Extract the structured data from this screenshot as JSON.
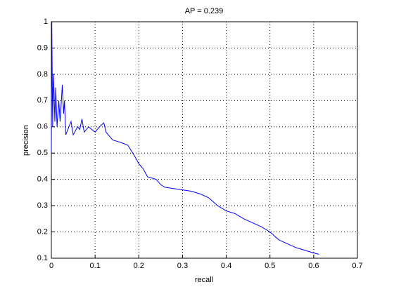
{
  "chart_data": {
    "type": "line",
    "title": "AP = 0.239",
    "x_label": "recall",
    "y_label": "precision",
    "x": [
      0,
      0.001,
      0.003,
      0.005,
      0.008,
      0.01,
      0.013,
      0.017,
      0.02,
      0.025,
      0.028,
      0.03,
      0.033,
      0.04,
      0.045,
      0.05,
      0.06,
      0.065,
      0.07,
      0.075,
      0.085,
      0.1,
      0.11,
      0.12,
      0.125,
      0.13,
      0.14,
      0.16,
      0.175,
      0.19,
      0.2,
      0.21,
      0.22,
      0.24,
      0.25,
      0.26,
      0.28,
      0.3,
      0.32,
      0.34,
      0.36,
      0.38,
      0.4,
      0.42,
      0.44,
      0.46,
      0.48,
      0.5,
      0.52,
      0.54,
      0.56,
      0.58,
      0.6,
      0.612
    ],
    "values": [
      0.5,
      1.0,
      0.6,
      0.8,
      0.62,
      0.75,
      0.6,
      0.7,
      0.62,
      0.76,
      0.65,
      0.7,
      0.57,
      0.6,
      0.62,
      0.57,
      0.6,
      0.59,
      0.63,
      0.58,
      0.6,
      0.58,
      0.6,
      0.615,
      0.58,
      0.57,
      0.55,
      0.54,
      0.53,
      0.49,
      0.46,
      0.44,
      0.41,
      0.4,
      0.38,
      0.37,
      0.365,
      0.36,
      0.355,
      0.345,
      0.33,
      0.3,
      0.28,
      0.27,
      0.25,
      0.235,
      0.22,
      0.2,
      0.17,
      0.155,
      0.14,
      0.13,
      0.12,
      0.115
    ],
    "color": "#0000ff",
    "xlim": [
      0,
      0.7
    ],
    "xticks": [
      0,
      0.1,
      0.2,
      0.3,
      0.4,
      0.5,
      0.6,
      0.7
    ],
    "ylim": [
      0.1,
      1
    ],
    "yticks": [
      0.1,
      0.2,
      0.3,
      0.4,
      0.5,
      0.6,
      0.7,
      0.8,
      0.9,
      1
    ],
    "grid": true
  }
}
